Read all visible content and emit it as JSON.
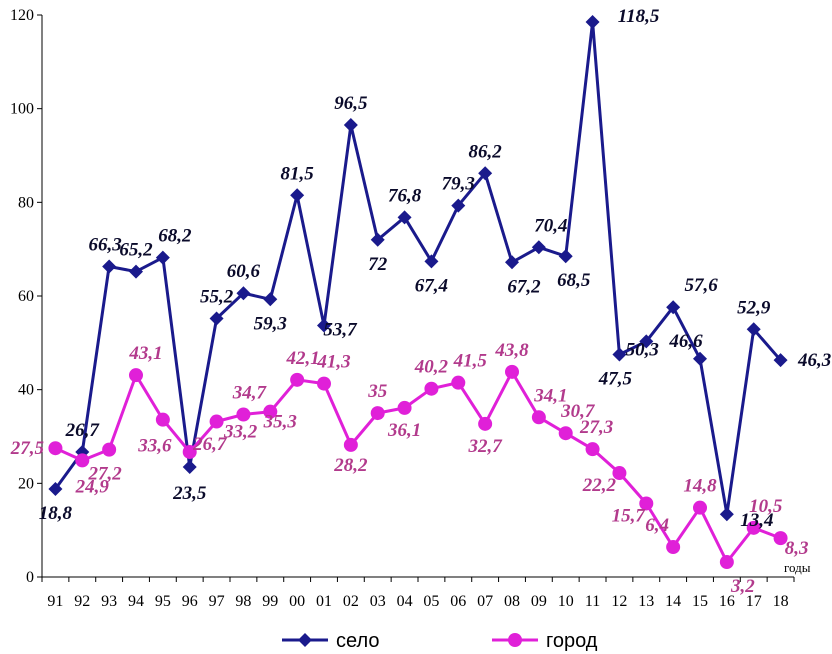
{
  "chart_data": {
    "type": "line",
    "title": "",
    "xlabel": "годы",
    "ylabel": "",
    "ylim": [
      0,
      120
    ],
    "yticks": [
      "0",
      "20",
      "40",
      "60",
      "80",
      "100",
      "120"
    ],
    "categories": [
      "91",
      "92",
      "93",
      "94",
      "95",
      "96",
      "97",
      "98",
      "99",
      "00",
      "01",
      "02",
      "03",
      "04",
      "05",
      "06",
      "07",
      "08",
      "09",
      "10",
      "11",
      "12",
      "13",
      "14",
      "15",
      "16",
      "17",
      "18"
    ],
    "series": [
      {
        "name": "село",
        "color": "#1a1a8c",
        "marker": "diamond",
        "values": [
          18.8,
          26.7,
          66.3,
          65.2,
          68.2,
          23.5,
          55.2,
          60.6,
          59.3,
          81.5,
          53.7,
          96.5,
          72,
          76.8,
          67.4,
          79.3,
          86.2,
          67.2,
          70.4,
          68.5,
          118.5,
          47.5,
          50.3,
          57.6,
          46.6,
          13.4,
          52.9,
          46.3
        ],
        "labels": [
          "18,8",
          "26,7",
          "66,3",
          "65,2",
          "68,2",
          "23,5",
          "55,2",
          "60,6",
          "59,3",
          "81,5",
          "53,7",
          "96,5",
          "72",
          "76,8",
          "67,4",
          "79,3",
          "86,2",
          "67,2",
          "70,4",
          "68,5",
          "118,5",
          "47,5",
          "50,3",
          "57,6",
          "46,6",
          "13,4",
          "52,9",
          "46,3"
        ]
      },
      {
        "name": "город",
        "color": "#e020d8",
        "label_color": "#b23a8c",
        "marker": "circle",
        "values": [
          27.5,
          24.9,
          27.2,
          43.1,
          33.6,
          26.7,
          33.2,
          34.7,
          35.3,
          42.1,
          41.3,
          28.2,
          35,
          36.1,
          40.2,
          41.5,
          32.7,
          43.8,
          34.1,
          30.7,
          27.3,
          22.2,
          15.7,
          6.4,
          14.8,
          3.2,
          10.5,
          8.3
        ],
        "labels": [
          "27,5",
          "24,9",
          "27,2",
          "43,1",
          "33,6",
          "26,7",
          "33,2",
          "34,7",
          "35,3",
          "42,1",
          "41,3",
          "28,2",
          "35",
          "36,1",
          "40,2",
          "41,5",
          "32,7",
          "43,8",
          "34,1",
          "30,7",
          "27,3",
          "22,2",
          "15,7",
          "6,4",
          "14,8",
          "3,2",
          "10,5",
          "8,3"
        ]
      }
    ],
    "legend": "bottom"
  }
}
